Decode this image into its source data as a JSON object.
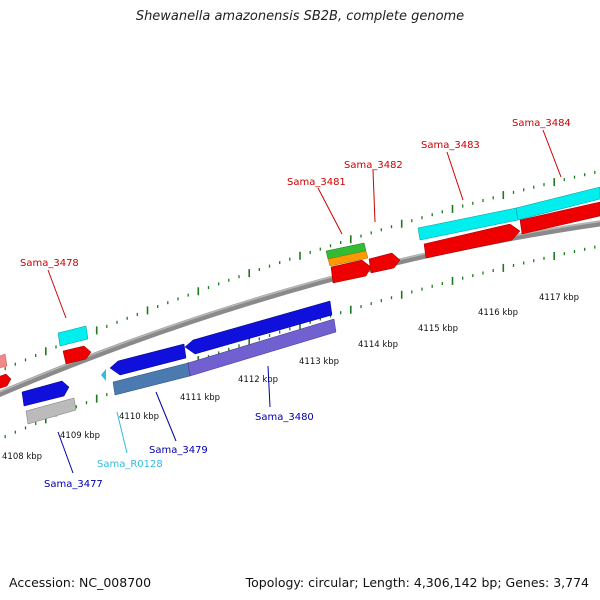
{
  "title": "Shewanella amazonensis SB2B, complete genome",
  "footer": {
    "accession": "Accession: NC_008700",
    "topology": "Topology: circular; Length: 4,306,142 bp; Genes: 3,774"
  },
  "colors": {
    "backbone": "#8a8a8a",
    "tick": "#1e7a1e",
    "label_red": "#cc0000",
    "label_blue": "#0000aa",
    "label_cyan": "#33bbdd",
    "gene_red": "#ee0000",
    "gene_cyan": "#00eeee",
    "gene_blue": "#1010dd",
    "gene_purple": "#7060d0",
    "gene_steel": "#4a7ab0",
    "gene_gray": "#bbbbbb",
    "gene_green": "#33bb33",
    "gene_orange": "#ff9900"
  },
  "tick_labels": [
    "4108 kbp",
    "4109 kbp",
    "4110 kbp",
    "4111 kbp",
    "4112 kbp",
    "4113 kbp",
    "4114 kbp",
    "4115 kbp",
    "4116 kbp",
    "4117 kbp"
  ],
  "upper_genes": [
    {
      "label": "Sama_3478"
    },
    {
      "label": "Sama_3481"
    },
    {
      "label": "Sama_3482"
    },
    {
      "label": "Sama_3483"
    },
    {
      "label": "Sama_3484"
    }
  ],
  "lower_genes": [
    {
      "label": "Sama_3477"
    },
    {
      "label": "Sama_R0128"
    },
    {
      "label": "Sama_3479"
    },
    {
      "label": "Sama_3480"
    }
  ]
}
